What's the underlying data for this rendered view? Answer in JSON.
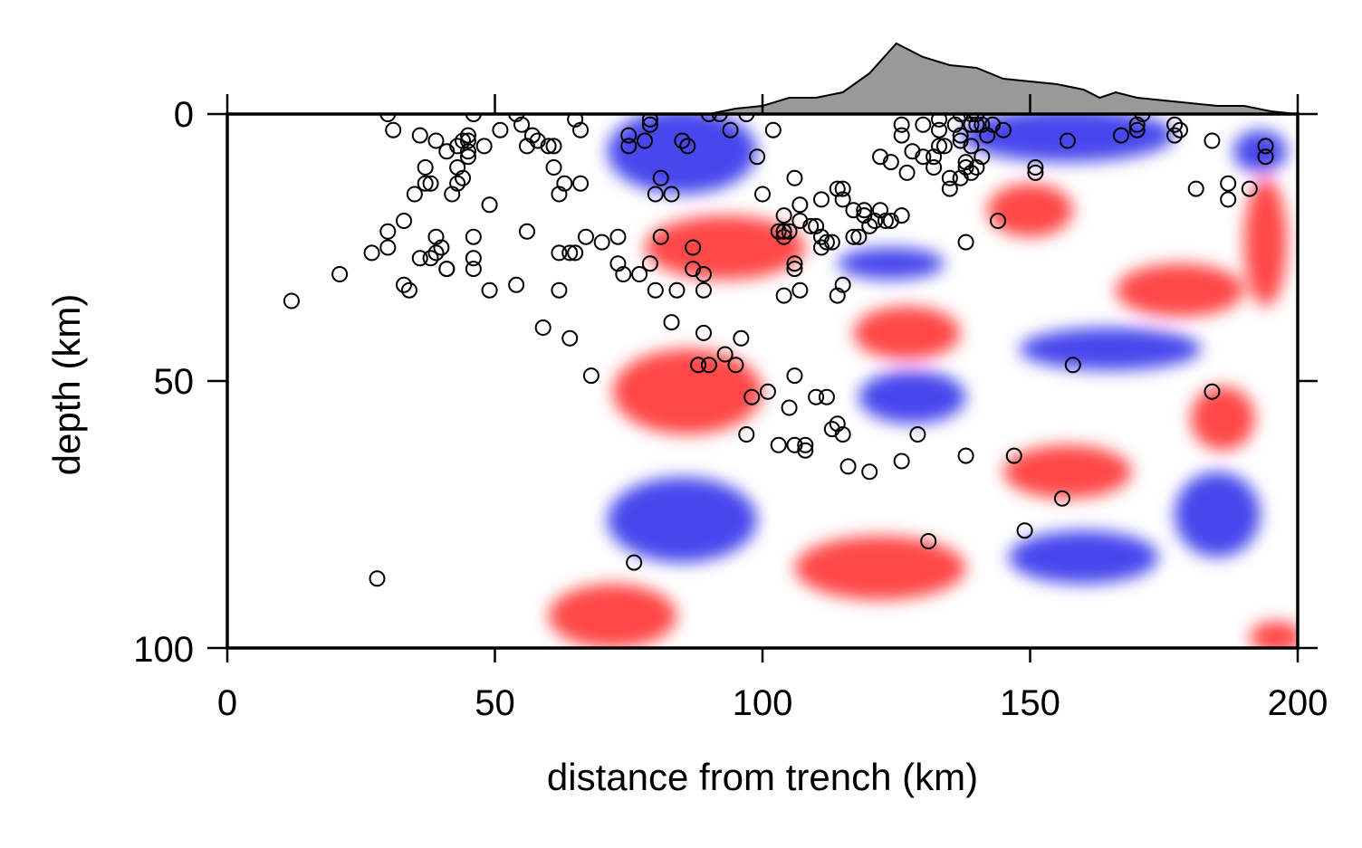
{
  "chart_data": {
    "type": "scatter",
    "title": "",
    "xlabel": "distance from trench (km)",
    "ylabel": "depth (km)",
    "xlim": [
      0,
      200
    ],
    "ylim": [
      100,
      0
    ],
    "y_inverted": true,
    "x_ticks": [
      0,
      50,
      100,
      150,
      200
    ],
    "y_ticks": [
      0,
      50,
      100
    ],
    "x_tick_labels": [
      "0",
      "50",
      "100",
      "150",
      "200"
    ],
    "y_tick_labels": [
      "0",
      "50",
      "100"
    ],
    "grid": false,
    "colors": {
      "positive_anomaly": "#ff0000",
      "negative_anomaly": "#0000e6",
      "topography_fill": "#999999",
      "marker_stroke": "#000000"
    },
    "topography": {
      "description_units": "distance km vs relative elevation (arbitrary)",
      "points": [
        [
          90,
          0
        ],
        [
          95,
          2
        ],
        [
          100,
          3
        ],
        [
          105,
          6
        ],
        [
          110,
          6
        ],
        [
          115,
          8
        ],
        [
          120,
          15
        ],
        [
          125,
          26
        ],
        [
          130,
          21
        ],
        [
          135,
          18
        ],
        [
          140,
          17
        ],
        [
          145,
          13
        ],
        [
          150,
          12
        ],
        [
          155,
          11
        ],
        [
          160,
          9
        ],
        [
          163,
          6
        ],
        [
          166,
          8
        ],
        [
          170,
          6
        ],
        [
          175,
          5
        ],
        [
          180,
          4
        ],
        [
          185,
          3
        ],
        [
          190,
          3
        ],
        [
          195,
          1
        ],
        [
          200,
          0
        ]
      ]
    },
    "velocity_anomalies": [
      {
        "sign": "negative",
        "x": 85,
        "depth": 7,
        "rx": 14,
        "ry": 8
      },
      {
        "sign": "negative",
        "x": 157,
        "depth": 4,
        "rx": 20,
        "ry": 5
      },
      {
        "sign": "negative",
        "x": 193,
        "depth": 7,
        "rx": 5,
        "ry": 4
      },
      {
        "sign": "positive",
        "x": 93,
        "depth": 25,
        "rx": 15,
        "ry": 6
      },
      {
        "sign": "positive",
        "x": 150,
        "depth": 18,
        "rx": 8,
        "ry": 5
      },
      {
        "sign": "positive",
        "x": 194,
        "depth": 24,
        "rx": 4,
        "ry": 12
      },
      {
        "sign": "positive",
        "x": 178,
        "depth": 33,
        "rx": 12,
        "ry": 5
      },
      {
        "sign": "negative",
        "x": 124,
        "depth": 28,
        "rx": 10,
        "ry": 3
      },
      {
        "sign": "negative",
        "x": 165,
        "depth": 44,
        "rx": 17,
        "ry": 4
      },
      {
        "sign": "positive",
        "x": 86,
        "depth": 52,
        "rx": 14,
        "ry": 8
      },
      {
        "sign": "positive",
        "x": 127,
        "depth": 41,
        "rx": 10,
        "ry": 5
      },
      {
        "sign": "positive",
        "x": 186,
        "depth": 57,
        "rx": 6,
        "ry": 6
      },
      {
        "sign": "negative",
        "x": 128,
        "depth": 53,
        "rx": 10,
        "ry": 5
      },
      {
        "sign": "negative",
        "x": 85,
        "depth": 76,
        "rx": 14,
        "ry": 8
      },
      {
        "sign": "negative",
        "x": 160,
        "depth": 83,
        "rx": 14,
        "ry": 5
      },
      {
        "sign": "negative",
        "x": 185,
        "depth": 75,
        "rx": 8,
        "ry": 8
      },
      {
        "sign": "positive",
        "x": 122,
        "depth": 85,
        "rx": 16,
        "ry": 6
      },
      {
        "sign": "positive",
        "x": 72,
        "depth": 94,
        "rx": 12,
        "ry": 6
      },
      {
        "sign": "positive",
        "x": 157,
        "depth": 67,
        "rx": 12,
        "ry": 5
      },
      {
        "sign": "positive",
        "x": 196,
        "depth": 98,
        "rx": 5,
        "ry": 3
      }
    ],
    "earthquakes": {
      "marker": "open circle",
      "points": [
        [
          12,
          35
        ],
        [
          21,
          30
        ],
        [
          27,
          26
        ],
        [
          28,
          87
        ],
        [
          30,
          22
        ],
        [
          30,
          25
        ],
        [
          30,
          0
        ],
        [
          31,
          3
        ],
        [
          33,
          20
        ],
        [
          33,
          32
        ],
        [
          34,
          33
        ],
        [
          35,
          15
        ],
        [
          36,
          27
        ],
        [
          36,
          4
        ],
        [
          37,
          10
        ],
        [
          37,
          13
        ],
        [
          38,
          13
        ],
        [
          38,
          27
        ],
        [
          39,
          26
        ],
        [
          39,
          5
        ],
        [
          39,
          23
        ],
        [
          40,
          25
        ],
        [
          41,
          29
        ],
        [
          41,
          29
        ],
        [
          41,
          7
        ],
        [
          42,
          15
        ],
        [
          43,
          13
        ],
        [
          43,
          6
        ],
        [
          43,
          10
        ],
        [
          44,
          12
        ],
        [
          44,
          5
        ],
        [
          45,
          7
        ],
        [
          45,
          5
        ],
        [
          45,
          8
        ],
        [
          45,
          4
        ],
        [
          46,
          23
        ],
        [
          46,
          27
        ],
        [
          46,
          29
        ],
        [
          46,
          0
        ],
        [
          48,
          6
        ],
        [
          49,
          17
        ],
        [
          49,
          33
        ],
        [
          51,
          3
        ],
        [
          54,
          32
        ],
        [
          54,
          0
        ],
        [
          55,
          2
        ],
        [
          56,
          6
        ],
        [
          56,
          22
        ],
        [
          57,
          4
        ],
        [
          58,
          5
        ],
        [
          59,
          40
        ],
        [
          60,
          6
        ],
        [
          61,
          6
        ],
        [
          61,
          10
        ],
        [
          62,
          15
        ],
        [
          62,
          26
        ],
        [
          62,
          33
        ],
        [
          63,
          13
        ],
        [
          64,
          26
        ],
        [
          64,
          42
        ],
        [
          65,
          26
        ],
        [
          65,
          1
        ],
        [
          66,
          3
        ],
        [
          66,
          13
        ],
        [
          67,
          23
        ],
        [
          68,
          49
        ],
        [
          70,
          24
        ],
        [
          73,
          23
        ],
        [
          73,
          28
        ],
        [
          74,
          30
        ],
        [
          75,
          4
        ],
        [
          75,
          6
        ],
        [
          76,
          84
        ],
        [
          77,
          30
        ],
        [
          78,
          5
        ],
        [
          79,
          28
        ],
        [
          79,
          1
        ],
        [
          79,
          2
        ],
        [
          80,
          33
        ],
        [
          80,
          15
        ],
        [
          81,
          23
        ],
        [
          81,
          12
        ],
        [
          83,
          39
        ],
        [
          83,
          15
        ],
        [
          84,
          33
        ],
        [
          85,
          5
        ],
        [
          86,
          6
        ],
        [
          87,
          29
        ],
        [
          87,
          25
        ],
        [
          88,
          47
        ],
        [
          89,
          30
        ],
        [
          89,
          33
        ],
        [
          89,
          41
        ],
        [
          90,
          0
        ],
        [
          90,
          47
        ],
        [
          92,
          0
        ],
        [
          93,
          45
        ],
        [
          94,
          3
        ],
        [
          95,
          47
        ],
        [
          96,
          42
        ],
        [
          97,
          60
        ],
        [
          97,
          0
        ],
        [
          98,
          53
        ],
        [
          99,
          8
        ],
        [
          100,
          15
        ],
        [
          101,
          52
        ],
        [
          102,
          3
        ],
        [
          103,
          62
        ],
        [
          103,
          22
        ],
        [
          104,
          22
        ],
        [
          104,
          34
        ],
        [
          104,
          23
        ],
        [
          104,
          19
        ],
        [
          105,
          22
        ],
        [
          105,
          55
        ],
        [
          106,
          12
        ],
        [
          106,
          49
        ],
        [
          106,
          28
        ],
        [
          106,
          29
        ],
        [
          106,
          62
        ],
        [
          107,
          33
        ],
        [
          107,
          17
        ],
        [
          107,
          20
        ],
        [
          108,
          62
        ],
        [
          108,
          63
        ],
        [
          109,
          21
        ],
        [
          110,
          21
        ],
        [
          110,
          53
        ],
        [
          111,
          25
        ],
        [
          111,
          23
        ],
        [
          111,
          16
        ],
        [
          112,
          24
        ],
        [
          112,
          53
        ],
        [
          113,
          24
        ],
        [
          113,
          59
        ],
        [
          114,
          14
        ],
        [
          114,
          58
        ],
        [
          114,
          34
        ],
        [
          115,
          32
        ],
        [
          115,
          60
        ],
        [
          115,
          14
        ],
        [
          115,
          16
        ],
        [
          116,
          66
        ],
        [
          117,
          23
        ],
        [
          117,
          18
        ],
        [
          118,
          23
        ],
        [
          119,
          19
        ],
        [
          119,
          18
        ],
        [
          120,
          21
        ],
        [
          120,
          67
        ],
        [
          121,
          20
        ],
        [
          122,
          8
        ],
        [
          122,
          18
        ],
        [
          123,
          20
        ],
        [
          124,
          20
        ],
        [
          124,
          9
        ],
        [
          126,
          65
        ],
        [
          126,
          19
        ],
        [
          126,
          4
        ],
        [
          126,
          2
        ],
        [
          127,
          11
        ],
        [
          128,
          7
        ],
        [
          129,
          60
        ],
        [
          130,
          2
        ],
        [
          130,
          8
        ],
        [
          131,
          80
        ],
        [
          132,
          10
        ],
        [
          132,
          8
        ],
        [
          133,
          6
        ],
        [
          133,
          3
        ],
        [
          133,
          1
        ],
        [
          134,
          6
        ],
        [
          135,
          14
        ],
        [
          135,
          12
        ],
        [
          136,
          2
        ],
        [
          137,
          0
        ],
        [
          137,
          4
        ],
        [
          137,
          5
        ],
        [
          137,
          12
        ],
        [
          138,
          64
        ],
        [
          138,
          24
        ],
        [
          138,
          10
        ],
        [
          138,
          9
        ],
        [
          139,
          11
        ],
        [
          139,
          0
        ],
        [
          139,
          6
        ],
        [
          139,
          2
        ],
        [
          140,
          2
        ],
        [
          140,
          0
        ],
        [
          140,
          10
        ],
        [
          141,
          2
        ],
        [
          141,
          8
        ],
        [
          142,
          4
        ],
        [
          143,
          2
        ],
        [
          144,
          20
        ],
        [
          145,
          3
        ],
        [
          147,
          64
        ],
        [
          151,
          10
        ],
        [
          151,
          11
        ],
        [
          149,
          78
        ],
        [
          156,
          72
        ],
        [
          157,
          5
        ],
        [
          158,
          47
        ],
        [
          167,
          4
        ],
        [
          170,
          3
        ],
        [
          170,
          2
        ],
        [
          171,
          0
        ],
        [
          177,
          2
        ],
        [
          177,
          4
        ],
        [
          178,
          3
        ],
        [
          181,
          14
        ],
        [
          184,
          5
        ],
        [
          184,
          52
        ],
        [
          187,
          13
        ],
        [
          187,
          16
        ],
        [
          191,
          14
        ],
        [
          194,
          6
        ],
        [
          194,
          8
        ]
      ]
    }
  }
}
